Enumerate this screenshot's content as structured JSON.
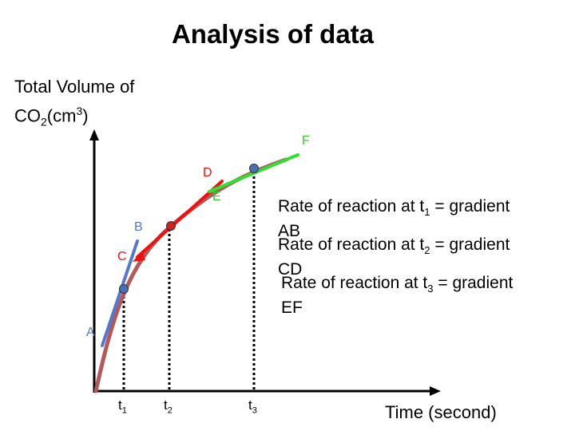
{
  "title": "Analysis of data",
  "y_axis": {
    "line1": "Total Volume of",
    "line2_a": "CO",
    "line2_sub": "2",
    "line2_b": "(cm",
    "line2_sup": "3",
    "line2_c": ")"
  },
  "x_axis": {
    "label": "Time (second)"
  },
  "ticks": [
    {
      "base": "t",
      "sub": "1"
    },
    {
      "base": "t",
      "sub": "2"
    },
    {
      "base": "t",
      "sub": "3"
    }
  ],
  "points": {
    "A": "A",
    "B": "B",
    "C": "C",
    "D": "D",
    "E": "E",
    "F": "F"
  },
  "rates": [
    {
      "pre": "Rate of reaction at t",
      "sub": "1",
      "post": " = gradient",
      "line2": "AB"
    },
    {
      "pre": "Rate of reaction at t",
      "sub": "2",
      "post": " = gradient",
      "line2": "CD"
    },
    {
      "pre": "Rate of reaction at t",
      "sub": "3",
      "post": " = gradient",
      "line2": "EF"
    }
  ],
  "colors": {
    "curve": "#b05a5a",
    "tangent_t1": "#5577cc",
    "tangent_t2": "#ee1111",
    "tangent_t3": "#33dd33",
    "point_t1": "#4a6fb5",
    "point_t2": "#cc2222",
    "point_t3": "#4a6fb5",
    "label_A": "#5577cc",
    "label_B": "#5577cc",
    "label_C": "#ee1111",
    "label_D": "#ee1111",
    "label_E": "#33cc33",
    "label_F": "#33cc33"
  }
}
